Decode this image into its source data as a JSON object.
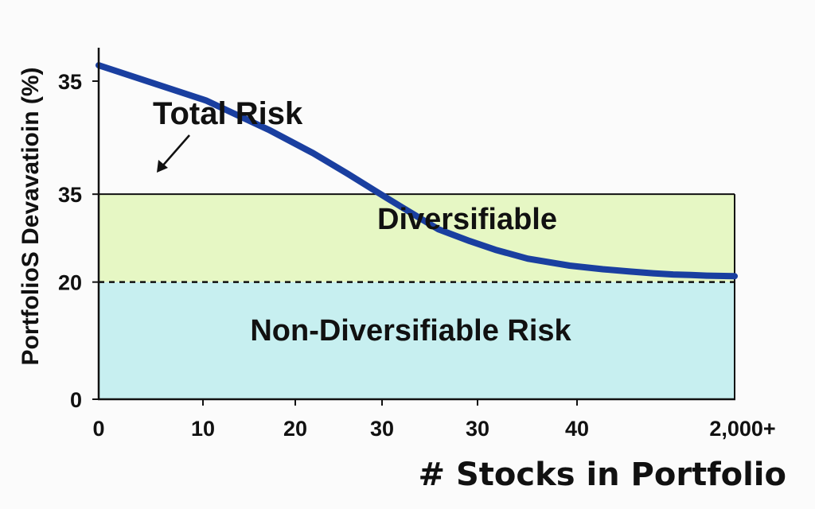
{
  "chart_data": {
    "type": "line",
    "ylabel": "PortfolioS Devavatioin (%)",
    "xlabel": "# Stocks in Portfolio",
    "x_tick_labels": [
      "0",
      "10",
      "20",
      "30",
      "30",
      "40",
      "2,000+"
    ],
    "y_tick_labels": [
      "0",
      "20",
      "35",
      "35"
    ],
    "regions": [
      {
        "label": "Diversifiable",
        "color": "#e6f7c4"
      },
      {
        "label": "Non-Diversifiable Risk",
        "color": "#c7eff0"
      }
    ],
    "series": [
      {
        "name": "Total Risk",
        "color": "#1a3fa0",
        "x": [
          0,
          1,
          2,
          3,
          4,
          5,
          6,
          8,
          10,
          12,
          15,
          20,
          25,
          30,
          35,
          40,
          45,
          50,
          60
        ],
        "y": [
          57,
          51,
          46,
          42,
          38.5,
          35.5,
          33,
          29,
          27,
          25.5,
          24,
          22.8,
          22.2,
          21.8,
          21.5,
          21.3,
          21.2,
          21.1,
          21.0
        ]
      }
    ],
    "annotations": [
      {
        "text": "Total Risk"
      }
    ],
    "reference_lines": [
      {
        "y": 20,
        "style": "dashed"
      }
    ],
    "ylim": [
      0,
      60
    ],
    "grid": false
  }
}
